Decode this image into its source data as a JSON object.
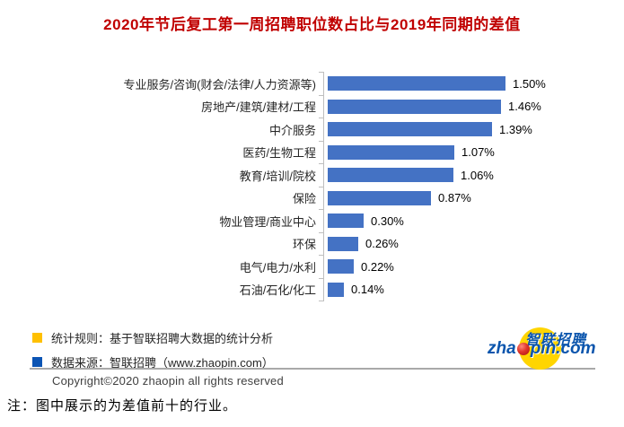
{
  "title": {
    "text": "2020年节后复工第一周招聘职位数占比与2019年同期的差值",
    "color": "#c00000"
  },
  "chart_data": {
    "type": "bar",
    "orientation": "horizontal",
    "title": "2020年节后复工第一周招聘职位数占比与2019年同期的差值",
    "categories": [
      "专业服务/咨询(财会/法律/人力资源等)",
      "房地产/建筑/建材/工程",
      "中介服务",
      "医药/生物工程",
      "教育/培训/院校",
      "保险",
      "物业管理/商业中心",
      "环保",
      "电气/电力/水利",
      "石油/石化/化工"
    ],
    "values": [
      1.5,
      1.46,
      1.39,
      1.07,
      1.06,
      0.87,
      0.3,
      0.26,
      0.22,
      0.14
    ],
    "value_labels": [
      "1.50%",
      "1.46%",
      "1.39%",
      "1.07%",
      "1.06%",
      "0.87%",
      "0.30%",
      "0.26%",
      "0.22%",
      "0.14%"
    ],
    "xlabel": "",
    "ylabel": "",
    "xlim": [
      0,
      1.5
    ],
    "grid": "off",
    "legend_position": "bottom-left",
    "bar_color": "#4472c4",
    "axis_color": "#bfbfbf",
    "value_label_position": "outside-end"
  },
  "legend": {
    "items": [
      {
        "swatch_color": "#ffc000",
        "label": "统计规则：基于智联招聘大数据的统计分析"
      },
      {
        "swatch_color": "#0b54b4",
        "label": "数据来源：智联招聘（www.zhaopin.com）"
      }
    ]
  },
  "footer": {
    "copyright": "Copyright©2020 zhaopin all rights reserved",
    "note": "注：图中展示的为差值前十的行业。"
  },
  "logo": {
    "cn_text": "智联招聘",
    "en_prefix": "zha",
    "en_suffix": "pin.com",
    "dot_icon": "red-dot-icon",
    "brand_blue": "#0b55ad",
    "circle_yellow": "#ffd500",
    "dot_red": "#d6322b"
  }
}
